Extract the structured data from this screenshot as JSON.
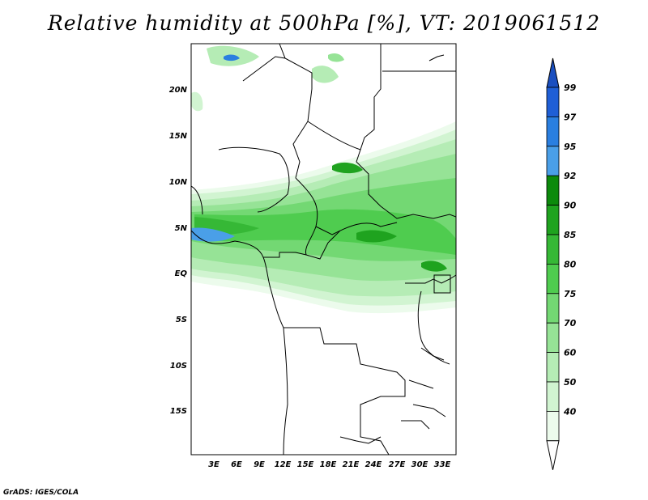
{
  "title": "Relative humidity at 500hPa [%], VT: 2019061512",
  "credit": "GrADS: IGES/COLA",
  "map": {
    "lon_ticks": [
      "3E",
      "6E",
      "9E",
      "12E",
      "15E",
      "18E",
      "21E",
      "24E",
      "27E",
      "30E",
      "33E"
    ],
    "lat_ticks": [
      "20N",
      "15N",
      "10N",
      "5N",
      "EQ",
      "5S",
      "10S",
      "15S"
    ]
  },
  "colorbar": {
    "levels": [
      "99",
      "97",
      "95",
      "92",
      "90",
      "85",
      "80",
      "75",
      "70",
      "60",
      "50",
      "40"
    ],
    "colors": [
      "#1f5fd6",
      "#2a7fe0",
      "#4a9fe8",
      "#0c8a0c",
      "#1fa31f",
      "#36b836",
      "#4fcc4f",
      "#73d873",
      "#96e396",
      "#b5ecb5",
      "#d1f4d1",
      "#ecfbec"
    ],
    "top_arrow_color": "#1a4fc0",
    "bottom_arrow_color": "#ffffff"
  },
  "colors": {
    "land_border": "#000000",
    "max_fill": "#1f5fd6"
  }
}
